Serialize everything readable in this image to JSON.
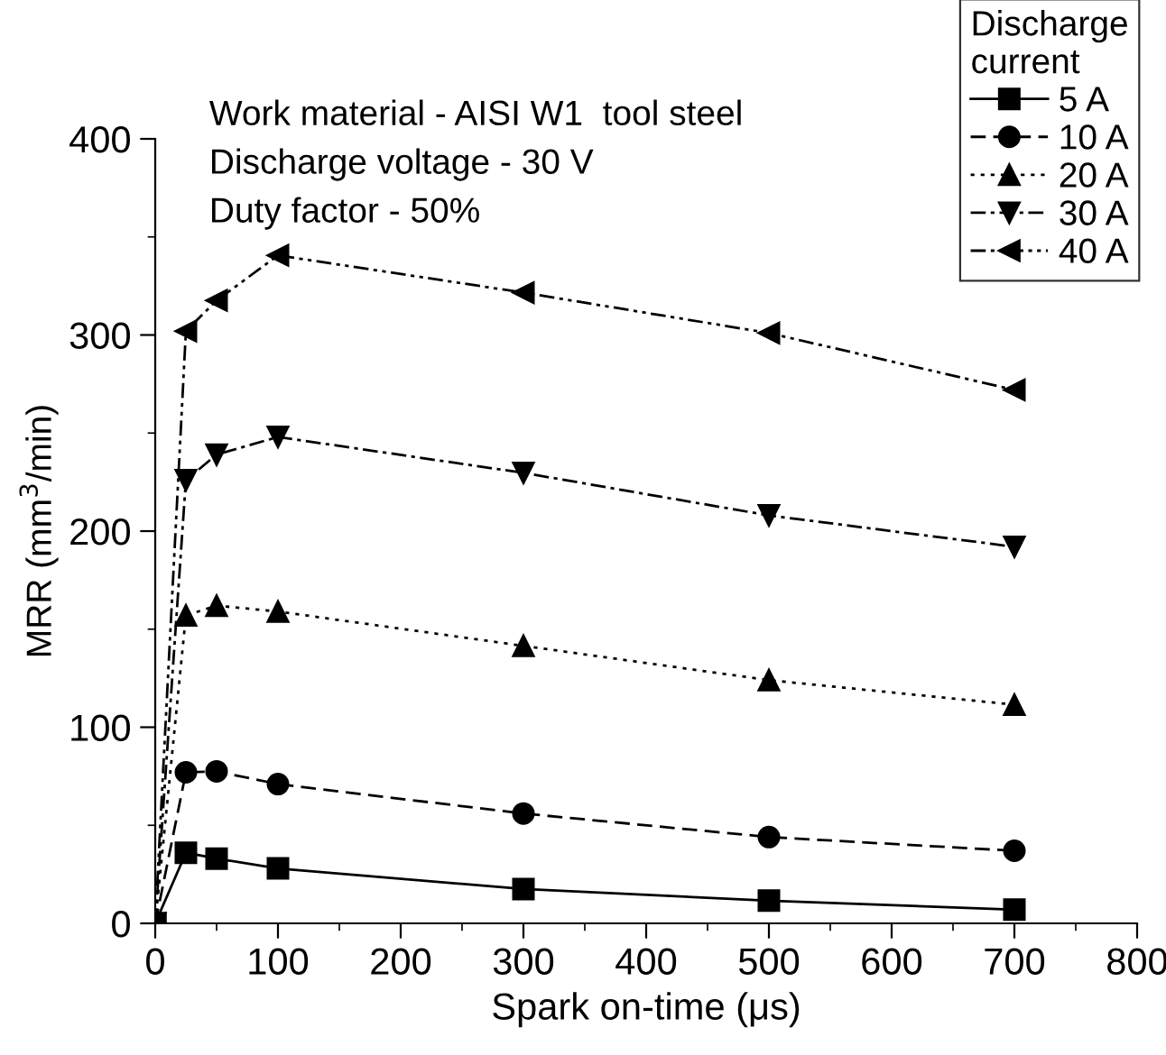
{
  "chart_data": {
    "type": "line",
    "xlabel": "Spark on-time (μs)",
    "ylabel": "MRR (mm$^{3}$/min)",
    "legend_title": "Discharge\ncurrent",
    "annotations": [
      "Work material - AISI W1  tool steel",
      "Discharge voltage - 30 V",
      "Duty factor - 50%"
    ],
    "x": [
      0,
      25,
      50,
      100,
      300,
      500,
      700
    ],
    "series": [
      {
        "name": "5 A",
        "color": "#000000",
        "marker": "square",
        "line_style": "solid",
        "values": [
          0,
          36,
          33,
          28,
          17.5,
          11.6,
          7
        ]
      },
      {
        "name": "10 A",
        "color": "#000000",
        "marker": "circle",
        "line_style": "dashed",
        "values": [
          0,
          77,
          77.5,
          71,
          56,
          44,
          37
        ]
      },
      {
        "name": "20 A",
        "color": "#000000",
        "marker": "triangle",
        "line_style": "dotted",
        "values": [
          0,
          157,
          162,
          159,
          141.5,
          124,
          111.5
        ]
      },
      {
        "name": "30 A",
        "color": "#000000",
        "marker": "triangle_down",
        "line_style": "dashdot",
        "values": [
          0,
          226,
          239,
          248,
          229.7,
          208,
          192
        ]
      },
      {
        "name": "40 A",
        "color": "#000000",
        "marker": "triangle_left",
        "line_style": "dashdotdot",
        "values": [
          0,
          302,
          317.6,
          340.6,
          321.6,
          301,
          272
        ]
      }
    ],
    "xlim": [
      0,
      800
    ],
    "xticks": [
      0,
      100,
      200,
      300,
      400,
      500,
      600,
      700,
      800
    ],
    "ylim": [
      0,
      400
    ],
    "yticks": [
      0,
      100,
      200,
      300,
      400
    ],
    "grid": false,
    "legend": "top right"
  }
}
